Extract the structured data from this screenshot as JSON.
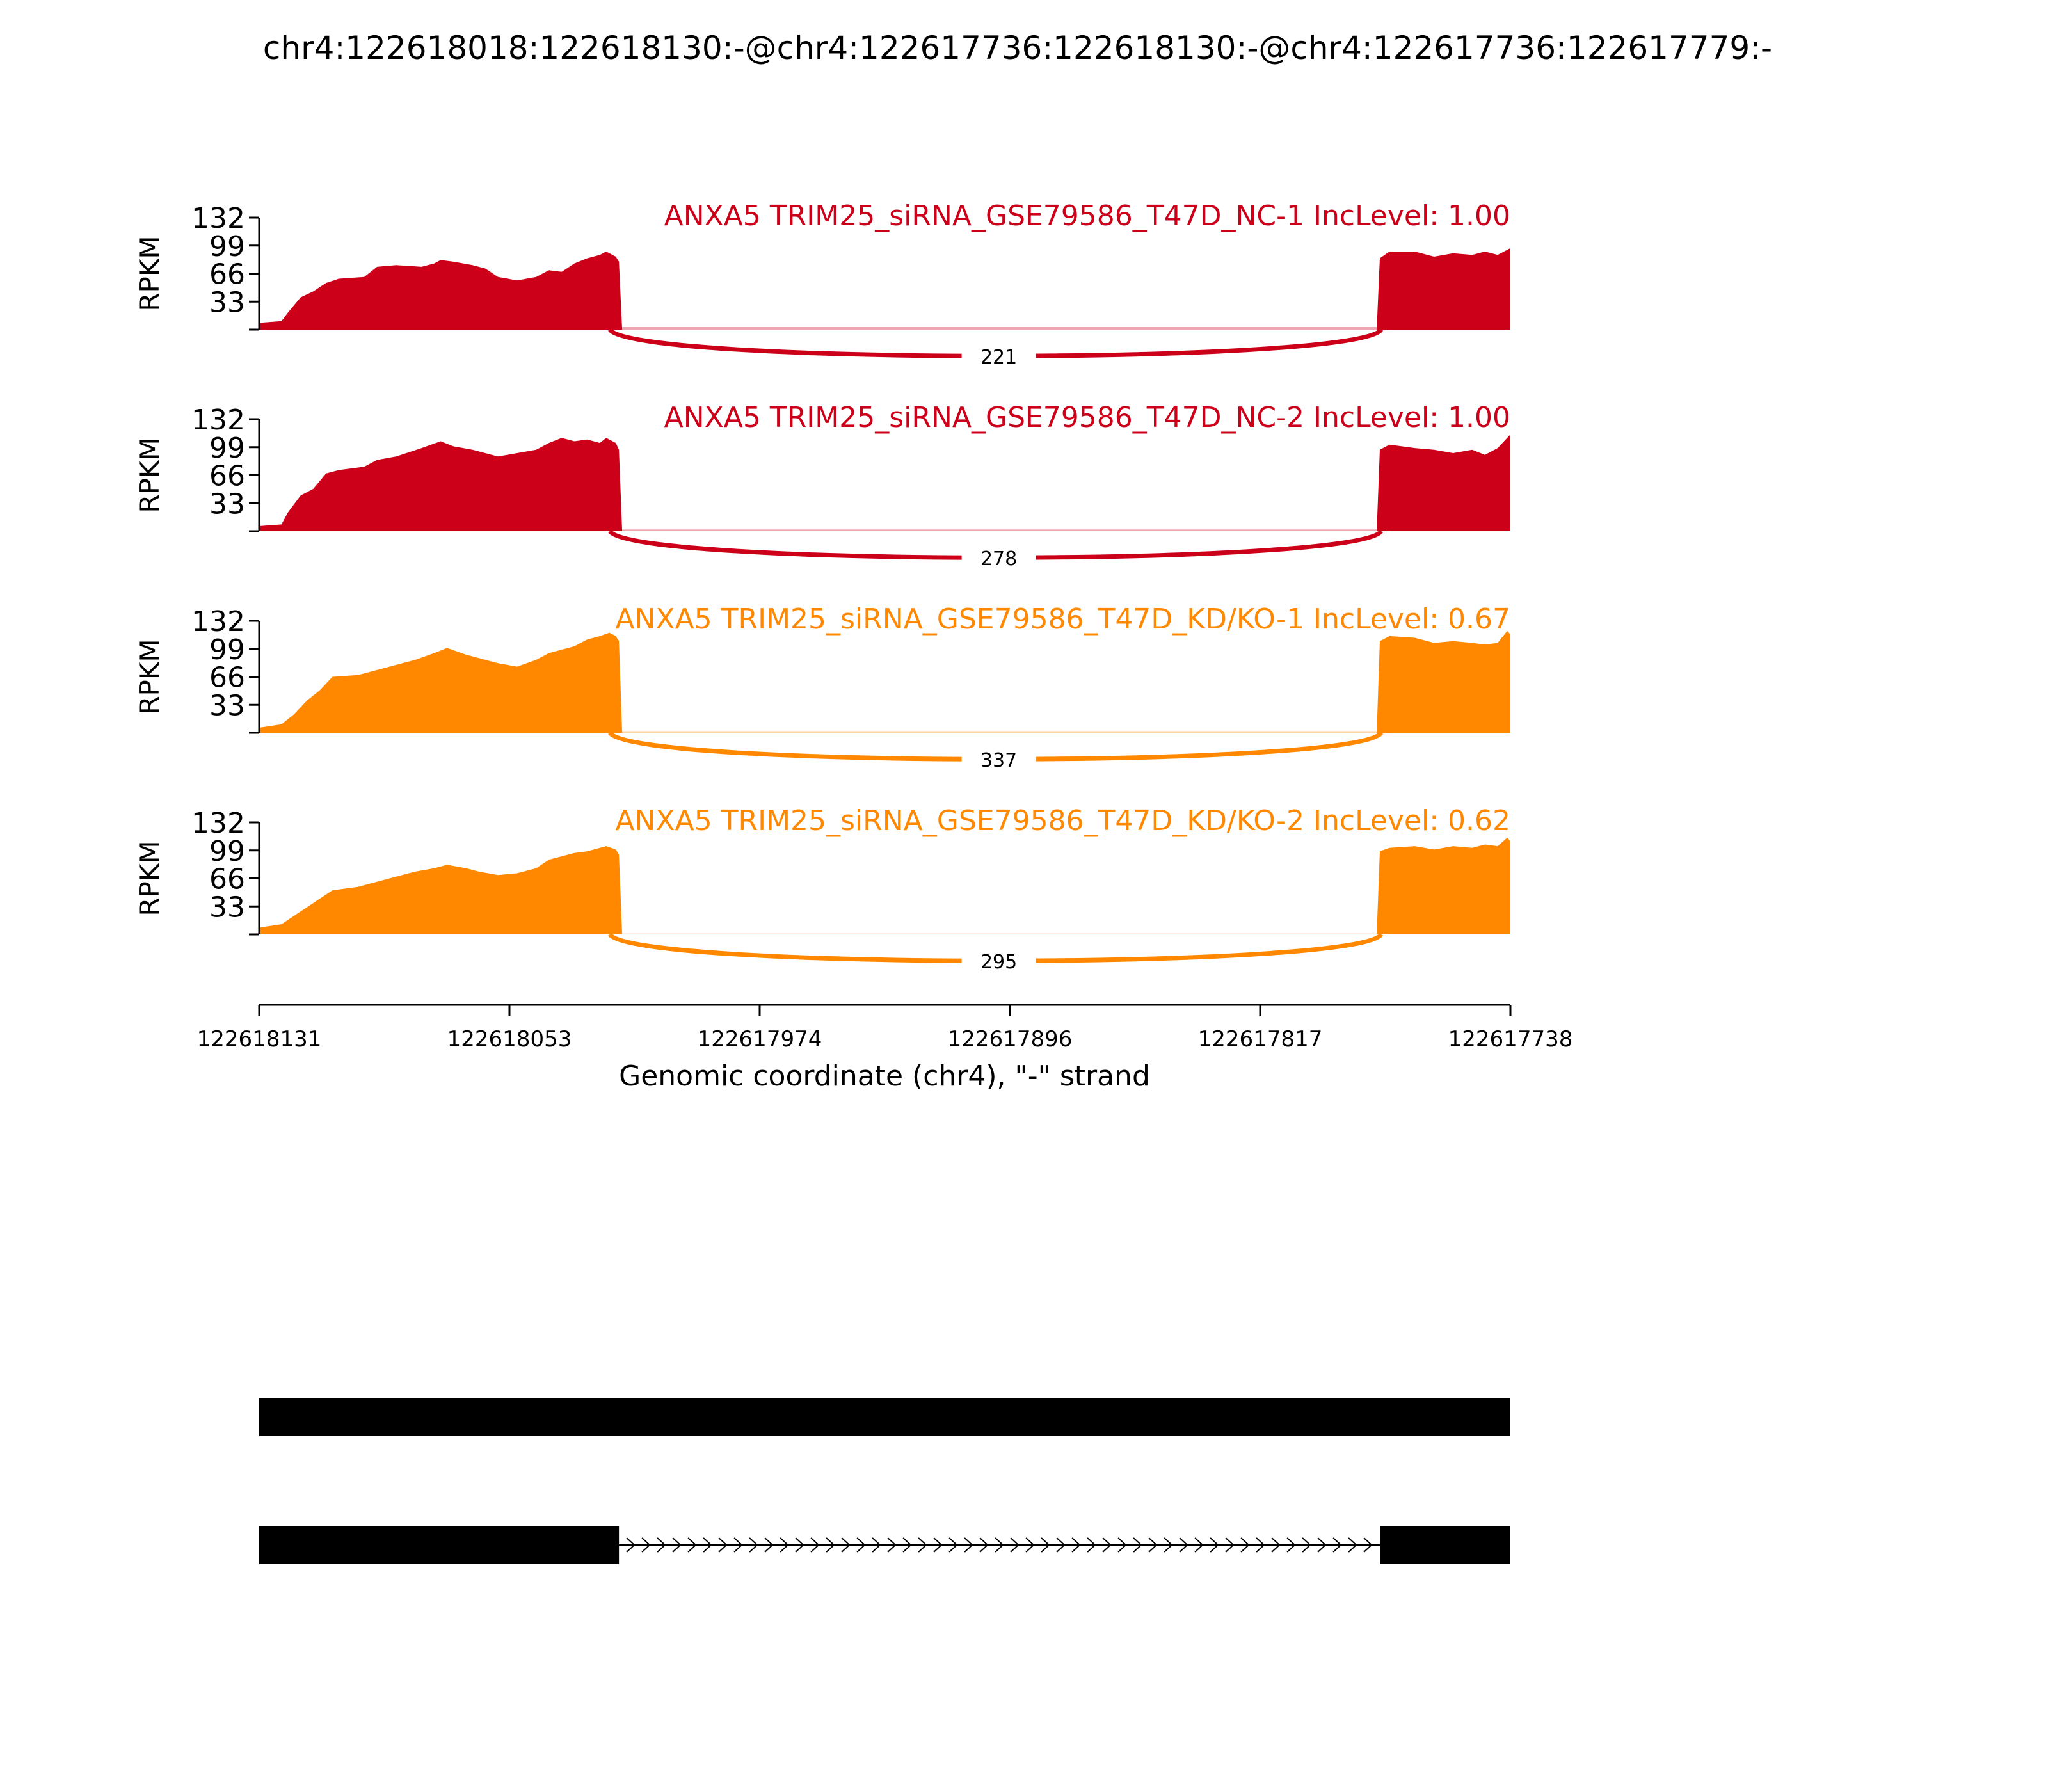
{
  "title": "chr4:122618018:122618130:-@chr4:122617736:122618130:-@chr4:122617736:122617779:-",
  "colors": {
    "nc": "#cc0018",
    "kd": "#ff8800",
    "axis": "#000000"
  },
  "chart_data": {
    "type": "area",
    "xlabel": "Genomic coordinate (chr4), \"-\" strand",
    "x_ticks": [
      "122618131",
      "122618053",
      "122617974",
      "122617896",
      "122617817",
      "122617738"
    ],
    "x_range": [
      122618131,
      122617738
    ],
    "ylabel": "RPKM",
    "y_ticks": [
      "132",
      "99",
      "66",
      "33"
    ],
    "ylim": [
      0,
      132
    ],
    "exon_a_end": 122618018,
    "exon_b_start": 122617779,
    "tracks": [
      {
        "label": "ANXA5 TRIM25_siRNA_GSE79586_T47D_NC-1 IncLevel: 1.00",
        "color_key": "nc",
        "junction_count": "221",
        "profile": [
          [
            122618131,
            8
          ],
          [
            122618124,
            10
          ],
          [
            122618122,
            20
          ],
          [
            122618118,
            38
          ],
          [
            122618114,
            45
          ],
          [
            122618110,
            55
          ],
          [
            122618106,
            60
          ],
          [
            122618098,
            62
          ],
          [
            122618094,
            74
          ],
          [
            122618088,
            76
          ],
          [
            122618080,
            74
          ],
          [
            122618076,
            78
          ],
          [
            122618074,
            82
          ],
          [
            122618070,
            80
          ],
          [
            122618064,
            76
          ],
          [
            122618060,
            72
          ],
          [
            122618056,
            62
          ],
          [
            122618050,
            58
          ],
          [
            122618044,
            62
          ],
          [
            122618040,
            70
          ],
          [
            122618036,
            68
          ],
          [
            122618032,
            78
          ],
          [
            122618028,
            84
          ],
          [
            122618024,
            88
          ],
          [
            122618022,
            92
          ],
          [
            122618019,
            86
          ],
          [
            122618018,
            80
          ],
          [
            122618017,
            0
          ]
        ],
        "profile_right": [
          [
            122617780,
            0
          ],
          [
            122617779,
            84
          ],
          [
            122617776,
            92
          ],
          [
            122617768,
            92
          ],
          [
            122617762,
            86
          ],
          [
            122617756,
            90
          ],
          [
            122617750,
            88
          ],
          [
            122617746,
            92
          ],
          [
            122617742,
            88
          ],
          [
            122617738,
            96
          ]
        ],
        "intron_level": 3
      },
      {
        "label": "ANXA5 TRIM25_siRNA_GSE79586_T47D_NC-2 IncLevel: 1.00",
        "color_key": "nc",
        "junction_count": "278",
        "profile": [
          [
            122618131,
            6
          ],
          [
            122618124,
            8
          ],
          [
            122618122,
            22
          ],
          [
            122618118,
            42
          ],
          [
            122618114,
            50
          ],
          [
            122618110,
            68
          ],
          [
            122618106,
            72
          ],
          [
            122618098,
            76
          ],
          [
            122618094,
            84
          ],
          [
            122618088,
            88
          ],
          [
            122618080,
            98
          ],
          [
            122618074,
            106
          ],
          [
            122618070,
            100
          ],
          [
            122618064,
            96
          ],
          [
            122618060,
            92
          ],
          [
            122618056,
            88
          ],
          [
            122618050,
            92
          ],
          [
            122618044,
            96
          ],
          [
            122618040,
            104
          ],
          [
            122618036,
            110
          ],
          [
            122618032,
            106
          ],
          [
            122618028,
            108
          ],
          [
            122618024,
            104
          ],
          [
            122618022,
            110
          ],
          [
            122618019,
            104
          ],
          [
            122618018,
            96
          ],
          [
            122618017,
            0
          ]
        ],
        "profile_right": [
          [
            122617780,
            0
          ],
          [
            122617779,
            96
          ],
          [
            122617776,
            102
          ],
          [
            122617768,
            98
          ],
          [
            122617762,
            96
          ],
          [
            122617756,
            92
          ],
          [
            122617750,
            96
          ],
          [
            122617746,
            90
          ],
          [
            122617742,
            98
          ],
          [
            122617738,
            114
          ]
        ],
        "intron_level": 2
      },
      {
        "label": "ANXA5 TRIM25_siRNA_GSE79586_T47D_KD/KO-1 IncLevel: 0.67",
        "color_key": "kd",
        "junction_count": "337",
        "profile": [
          [
            122618131,
            6
          ],
          [
            122618124,
            10
          ],
          [
            122618120,
            22
          ],
          [
            122618116,
            38
          ],
          [
            122618112,
            50
          ],
          [
            122618108,
            66
          ],
          [
            122618100,
            68
          ],
          [
            122618094,
            74
          ],
          [
            122618088,
            80
          ],
          [
            122618082,
            86
          ],
          [
            122618076,
            94
          ],
          [
            122618072,
            100
          ],
          [
            122618066,
            92
          ],
          [
            122618062,
            88
          ],
          [
            122618056,
            82
          ],
          [
            122618050,
            78
          ],
          [
            122618044,
            86
          ],
          [
            122618040,
            94
          ],
          [
            122618036,
            98
          ],
          [
            122618032,
            102
          ],
          [
            122618028,
            110
          ],
          [
            122618024,
            114
          ],
          [
            122618021,
            118
          ],
          [
            122618019,
            114
          ],
          [
            122618018,
            108
          ],
          [
            122618017,
            0
          ]
        ],
        "profile_right": [
          [
            122617780,
            0
          ],
          [
            122617779,
            108
          ],
          [
            122617776,
            114
          ],
          [
            122617768,
            112
          ],
          [
            122617762,
            106
          ],
          [
            122617756,
            108
          ],
          [
            122617750,
            106
          ],
          [
            122617746,
            104
          ],
          [
            122617742,
            106
          ],
          [
            122617739,
            120
          ],
          [
            122617738,
            116
          ]
        ],
        "intron_level": 2
      },
      {
        "label": "ANXA5 TRIM25_siRNA_GSE79586_T47D_KD/KO-2 IncLevel: 0.62",
        "color_key": "kd",
        "junction_count": "295",
        "profile": [
          [
            122618131,
            8
          ],
          [
            122618124,
            12
          ],
          [
            122618120,
            22
          ],
          [
            122618116,
            32
          ],
          [
            122618112,
            42
          ],
          [
            122618108,
            52
          ],
          [
            122618100,
            56
          ],
          [
            122618094,
            62
          ],
          [
            122618088,
            68
          ],
          [
            122618082,
            74
          ],
          [
            122618076,
            78
          ],
          [
            122618072,
            82
          ],
          [
            122618066,
            78
          ],
          [
            122618062,
            74
          ],
          [
            122618056,
            70
          ],
          [
            122618050,
            72
          ],
          [
            122618044,
            78
          ],
          [
            122618040,
            88
          ],
          [
            122618036,
            92
          ],
          [
            122618032,
            96
          ],
          [
            122618028,
            98
          ],
          [
            122618024,
            102
          ],
          [
            122618022,
            104
          ],
          [
            122618019,
            100
          ],
          [
            122618018,
            94
          ],
          [
            122618017,
            0
          ]
        ],
        "profile_right": [
          [
            122617780,
            0
          ],
          [
            122617779,
            98
          ],
          [
            122617776,
            102
          ],
          [
            122617768,
            104
          ],
          [
            122617762,
            100
          ],
          [
            122617756,
            104
          ],
          [
            122617750,
            102
          ],
          [
            122617746,
            106
          ],
          [
            122617742,
            104
          ],
          [
            122617739,
            114
          ],
          [
            122617738,
            110
          ]
        ],
        "intron_level": 1
      }
    ],
    "isoforms": [
      {
        "segments": [
          [
            122618131,
            122617738
          ]
        ]
      },
      {
        "segments": [
          [
            122618131,
            122618018
          ],
          [
            122617779,
            122617738
          ]
        ]
      }
    ]
  }
}
